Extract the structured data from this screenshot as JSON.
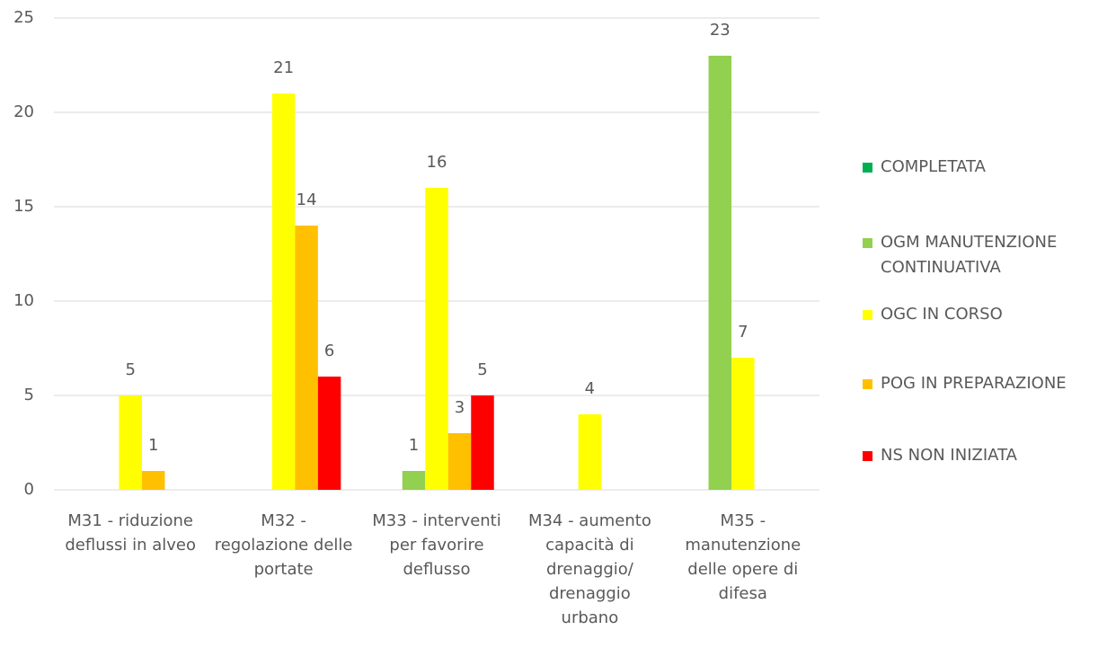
{
  "chart_data": {
    "type": "bar",
    "categories": [
      "M31 - riduzione deflussi in alveo",
      "M32 - regolazione delle portate",
      "M33 - interventi per favorire deflusso",
      "M34 - aumento capacità di drenaggio/ drenaggio urbano",
      "M35 - manutenzione delle opere di difesa"
    ],
    "series": [
      {
        "name": "COMPLETATA",
        "color": "#00b050",
        "values": [
          null,
          null,
          null,
          null,
          null
        ]
      },
      {
        "name": "OGM MANUTENZIONE CONTINUATIVA",
        "color": "#92d050",
        "values": [
          null,
          null,
          1,
          null,
          23
        ]
      },
      {
        "name": "OGC IN CORSO",
        "color": "#ffff00",
        "values": [
          5,
          21,
          16,
          4,
          7
        ]
      },
      {
        "name": "POG IN PREPARAZIONE",
        "color": "#ffc000",
        "values": [
          1,
          14,
          3,
          null,
          null
        ]
      },
      {
        "name": "NS NON INIZIATA",
        "color": "#ff0000",
        "values": [
          null,
          6,
          5,
          null,
          null
        ]
      }
    ],
    "ylim": [
      0,
      25
    ],
    "yticks": [
      0,
      5,
      10,
      15,
      20,
      25
    ],
    "grid": true,
    "legend": "right"
  }
}
